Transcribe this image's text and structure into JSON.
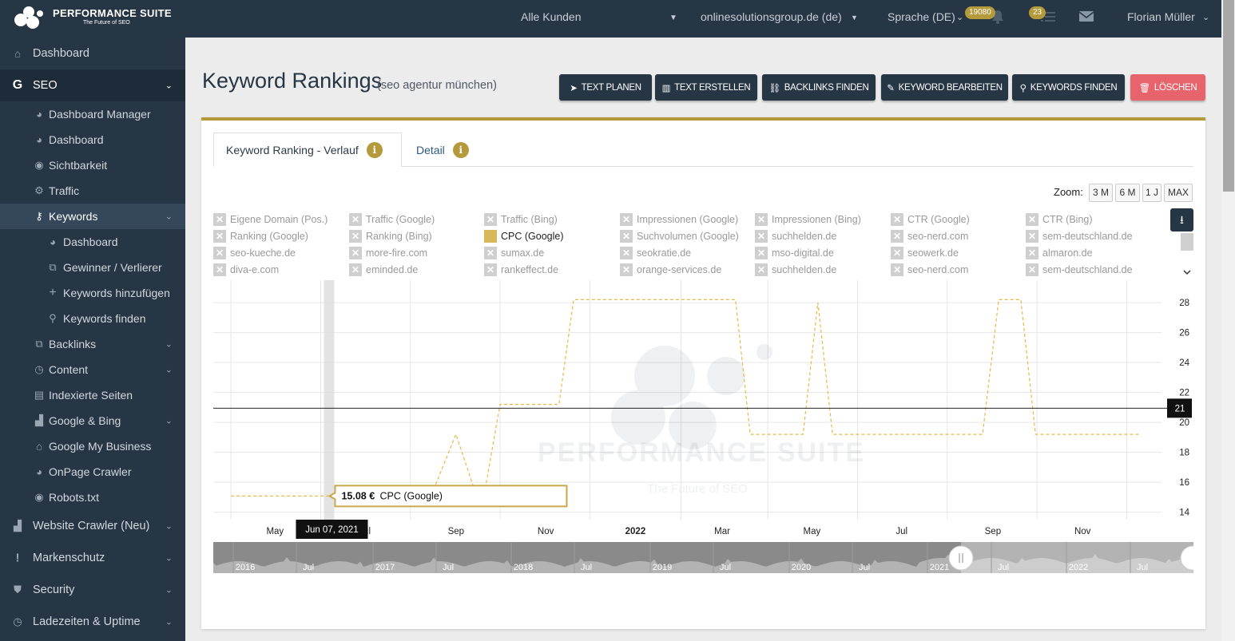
{
  "topbar": {
    "brand": "Performance Suite",
    "tagline": "The Future of SEO",
    "customer_select": "Alle Kunden",
    "domain_select": "onlinesolutionsgroup.de (de)",
    "language": "Sprache (DE)",
    "notif_badge": "19080",
    "tasks_badge": "23",
    "user": "Florian Müller"
  },
  "sidebar": {
    "dashboard": "Dashboard",
    "seo": "SEO",
    "seo_items": [
      "Dashboard Manager",
      "Dashboard",
      "Sichtbarkeit",
      "Traffic"
    ],
    "keywords": "Keywords",
    "keyword_items": [
      "Dashboard",
      "Gewinner / Verlierer",
      "Keywords hinzufügen",
      "Keywords finden"
    ],
    "more_items": [
      "Backlinks",
      "Content",
      "Indexierte Seiten",
      "Google & Bing",
      "Google My Business",
      "OnPage Crawler",
      "Robots.txt"
    ],
    "sections": [
      "Website Crawler (Neu)",
      "Markenschutz",
      "Security",
      "Ladezeiten & Uptime"
    ]
  },
  "page": {
    "title": "Keyword Rankings",
    "subtitle": "(seo agentur münchen)"
  },
  "actions": {
    "text_planen": "TEXT PLANEN",
    "text_erstellen": "TEXT ERSTELLEN",
    "backlinks_finden": "BACKLINKS FINDEN",
    "keyword_bearbeiten": "KEYWORD BEARBEITEN",
    "keywords_finden": "KEYWORDS FINDEN",
    "loeschen": "LÖSCHEN"
  },
  "tabs": {
    "verlauf": "Keyword Ranking - Verlauf",
    "detail": "Detail"
  },
  "zoom": {
    "label": "Zoom:",
    "options": [
      "3 M",
      "6 M",
      "1 J",
      "MAX"
    ]
  },
  "legend": [
    [
      "Eigene Domain (Pos.)",
      "Traffic (Google)",
      "Traffic (Bing)",
      "Impressionen (Google)",
      "Impressionen (Bing)",
      "CTR (Google)",
      "CTR (Bing)"
    ],
    [
      "Ranking (Google)",
      "Ranking (Bing)",
      "CPC (Google)",
      "Suchvolumen (Google)",
      "suchhelden.de",
      "seo-nerd.com",
      "sem-deutschland.de"
    ],
    [
      "seo-kueche.de",
      "more-fire.com",
      "sumax.de",
      "seokratie.de",
      "mso-digital.de",
      "seowerk.de",
      "almaron.de"
    ],
    [
      "diva-e.com",
      "eminded.de",
      "rankeffect.de",
      "orange-services.de",
      "suchhelden.de",
      "seo-nerd.com",
      "sem-deutschland.de"
    ]
  ],
  "legend_active": "CPC (Google)",
  "chart_data": {
    "type": "line",
    "series": [
      {
        "name": "CPC (Google)",
        "color": "#e8b94a",
        "style": "dashed",
        "points": [
          [
            "2021-04-01",
            15.08
          ],
          [
            "2021-06-07",
            15.08
          ],
          [
            "2021-08-15",
            15.08
          ],
          [
            "2021-09-01",
            19.2
          ],
          [
            "2021-09-15",
            15.08
          ],
          [
            "2021-09-20",
            15.08
          ],
          [
            "2021-10-01",
            21.2
          ],
          [
            "2021-11-10",
            21.2
          ],
          [
            "2021-11-20",
            28.2
          ],
          [
            "2022-03-10",
            28.2
          ],
          [
            "2022-03-20",
            19.2
          ],
          [
            "2022-04-25",
            19.2
          ],
          [
            "2022-05-05",
            28.0
          ],
          [
            "2022-05-15",
            19.2
          ],
          [
            "2022-08-25",
            19.2
          ],
          [
            "2022-09-05",
            28.2
          ],
          [
            "2022-09-20",
            28.2
          ],
          [
            "2022-09-30",
            19.2
          ],
          [
            "2022-12-10",
            19.2
          ]
        ]
      }
    ],
    "xlim": [
      "2021-03-20",
      "2022-12-10"
    ],
    "ylim": [
      13.5,
      29.5
    ],
    "x_ticks": [
      "May",
      "Jul",
      "Sep",
      "Nov",
      "2022",
      "Mar",
      "May",
      "Jul",
      "Sep",
      "Nov"
    ],
    "y_ticks": [
      14,
      16,
      18,
      20,
      22,
      24,
      26,
      28
    ],
    "crosshair_value": "21",
    "tooltip": {
      "date": "Jun 07, 2021",
      "value": "15.08 €",
      "series": "CPC (Google)"
    },
    "navigator_labels": [
      "2016",
      "Jul",
      "2017",
      "Jul",
      "2018",
      "Jul",
      "2019",
      "Jul",
      "2020",
      "Jul",
      "2021",
      "Jul",
      "2022",
      "Jul"
    ],
    "watermark": {
      "title": "Performance Suite",
      "subtitle": "The Future of SEO"
    },
    "grid": true
  }
}
